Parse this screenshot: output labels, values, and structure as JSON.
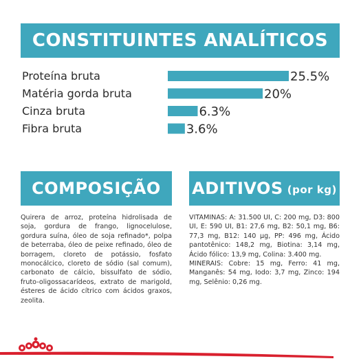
{
  "sections": {
    "analytics_title": "CONSTITUINTES ANALÍTICOS",
    "composition_title": "COMPOSIÇÃO",
    "additives_title": "ADITIVOS",
    "additives_unit": "(por kg)"
  },
  "colors": {
    "accent": "#3fa7bd",
    "brand_red": "#d9202e",
    "text": "#2b2b2b"
  },
  "chart_data": {
    "type": "bar",
    "orientation": "horizontal",
    "categories": [
      "Proteína bruta",
      "Matéria gorda bruta",
      "Cinza bruta",
      "Fibra bruta"
    ],
    "values": [
      25.5,
      20,
      6.3,
      3.6
    ],
    "value_labels": [
      "25.5%",
      "20%",
      "6.3%",
      "3.6%"
    ],
    "unit": "%",
    "xlim": [
      0,
      25.5
    ],
    "grid": false,
    "legend": "none"
  },
  "composition": {
    "text": "Quirera de arroz, proteína hidrolisada de soja, gordura de frango, lignocelulose, gordura suína, óleo de soja refinado*, polpa de beterraba, óleo de peixe refinado, óleo de borragem, cloreto de potássio, fosfato monocálcico, cloreto de sódio (sal comum), carbonato de cálcio, bissulfato de sódio, fruto-oligossacarídeos, extrato de marigold, ésteres de ácido cítrico com ácidos graxos, zeolita."
  },
  "additives": {
    "vitamins": "VITAMINAS: A: 31.500 UI, C: 200 mg, D3: 800 UI, E: 590 UI, B1: 27,6 mg, B2: 50,1 mg, B6: 77,3 mg, B12: 140 µg, PP: 496 mg, Ácido pantotênico: 148,2 mg, Biotina: 3,14 mg, Ácido fólico: 13,9 mg, Colina: 3.400 mg.",
    "minerals": "MINERAIS: Cobre: 15 mg, Ferro: 41 mg, Manganês: 54 mg, Iodo: 3,7 mg, Zinco: 194 mg, Selênio: 0,26 mg."
  },
  "footer": {
    "logo_icon": "royal-crown-icon"
  }
}
